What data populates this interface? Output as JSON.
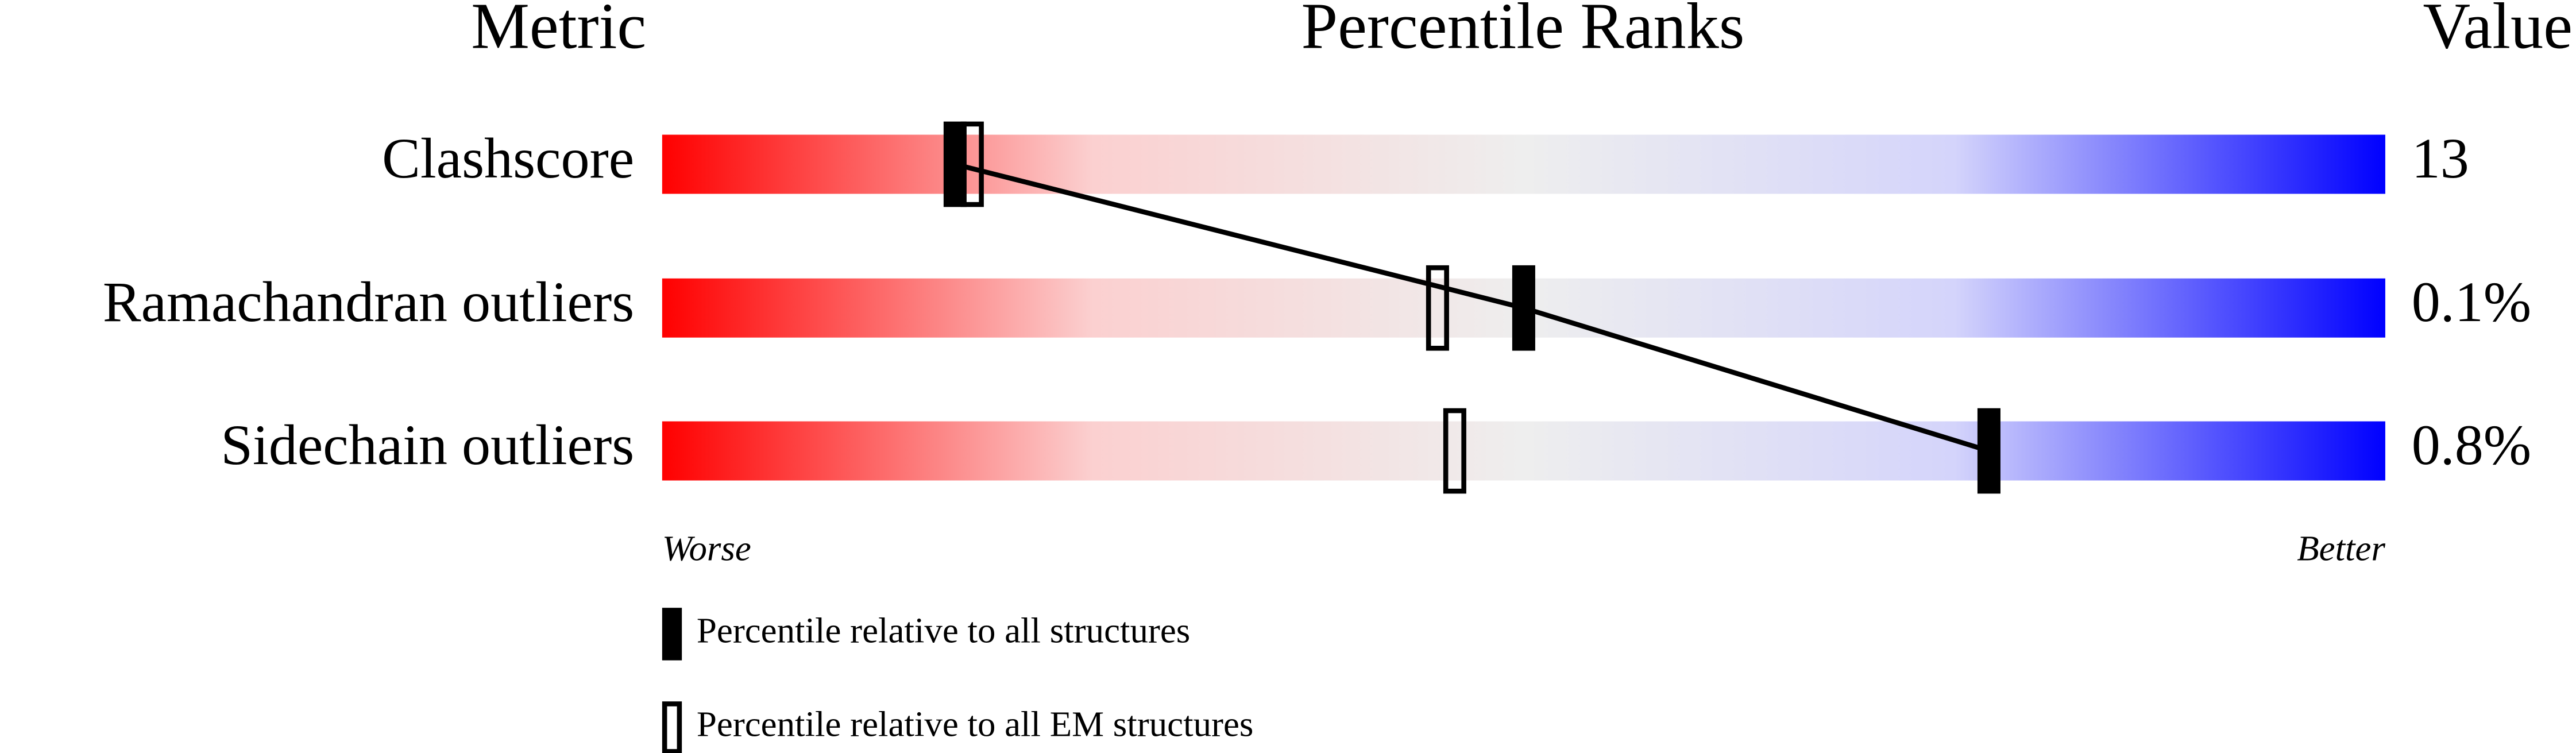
{
  "chart_data": {
    "type": "percentile",
    "headers": {
      "metric": "Metric",
      "ranks": "Percentile Ranks",
      "value": "Value"
    },
    "categories": [
      "Clashscore",
      "Ramachandran outliers",
      "Sidechain outliers"
    ],
    "metric_values": [
      "13",
      "0.1%",
      "0.8%"
    ],
    "series": [
      {
        "name": "Percentile relative to all structures",
        "color": "#000000",
        "values": [
          17,
          50,
          77
        ]
      },
      {
        "name": "Percentile relative to all EM structures",
        "color": "#000000",
        "values": [
          18,
          45,
          46
        ]
      }
    ],
    "xlim": [
      0,
      100
    ],
    "axis_labels": {
      "low": "Worse",
      "high": "Better"
    },
    "gradient_colors": [
      "#ff0000",
      "#fbd0d0",
      "#eeeeee",
      "#d4d4fb",
      "#0000ff"
    ]
  }
}
